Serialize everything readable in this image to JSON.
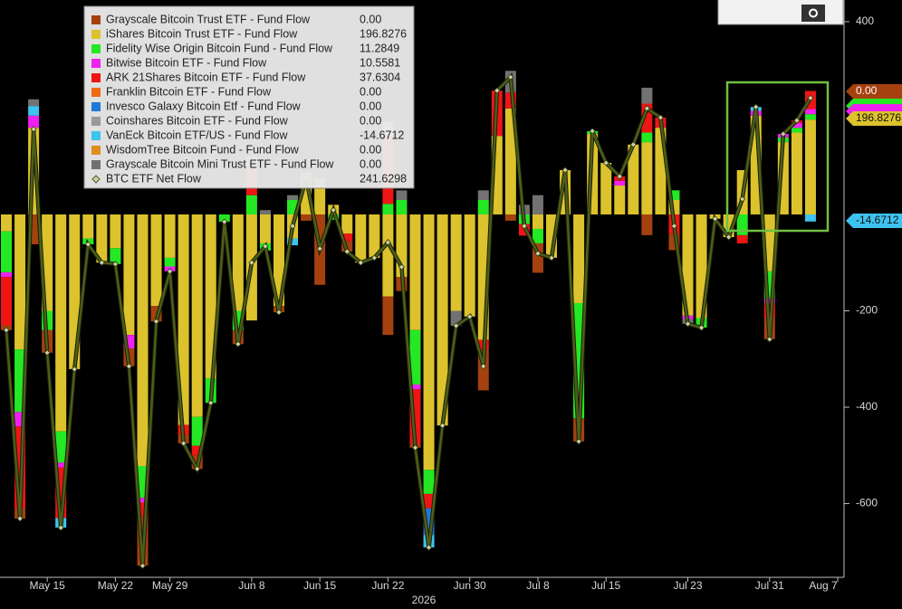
{
  "chart_data": {
    "type": "stacked-bar-line",
    "x_label": "2026",
    "categories": [
      null,
      null,
      null,
      "May 15",
      null,
      null,
      null,
      null,
      "May 22",
      null,
      null,
      null,
      "May 29",
      null,
      null,
      null,
      null,
      null,
      "Jun 8",
      null,
      null,
      null,
      null,
      "Jun 15",
      null,
      null,
      null,
      null,
      "Jun 22",
      null,
      null,
      null,
      null,
      null,
      "Jun 30",
      null,
      null,
      null,
      null,
      "Jul 8",
      null,
      null,
      null,
      null,
      "Jul 15",
      null,
      null,
      null,
      null,
      null,
      "Jul 23",
      null,
      null,
      null,
      null,
      null,
      "Jul 31",
      null,
      null,
      null,
      null,
      "Aug 7"
    ],
    "ylim": [
      -753,
      445
    ],
    "yticks": [
      -600,
      -400,
      -200,
      400
    ],
    "series": [
      {
        "name": "Grayscale Bitcoin Trust ETF - Fund Flow",
        "legend_value": "0.00",
        "color": "#a4410f",
        "values": [
          -10,
          -21,
          -62,
          -47,
          0,
          0,
          0,
          0,
          0,
          -37,
          -103,
          -32,
          0,
          -18,
          -28,
          0,
          0,
          -29,
          0,
          0,
          -13,
          0,
          -13,
          -146,
          0,
          -22,
          0,
          0,
          -80,
          -29,
          -8,
          0,
          0,
          0,
          0,
          -85,
          0,
          -13,
          0,
          -61,
          0,
          0,
          -48,
          0,
          0,
          0,
          0,
          -43,
          0,
          -34,
          0,
          0,
          0,
          0,
          0,
          0,
          -45,
          0,
          0,
          0,
          null,
          null
        ]
      },
      {
        "name": "iShares Bitcoin Trust ETF - Fund Flow",
        "legend_value": "196.8276",
        "color": "#dcc22c",
        "values": [
          -35,
          -280,
          180,
          -200,
          -450,
          -321,
          -50,
          -100,
          -70,
          -250,
          -522,
          -190,
          -90,
          -437,
          -420,
          -340,
          0,
          -200,
          -220,
          -60,
          -190,
          -50,
          60,
          60,
          20,
          -40,
          -100,
          -90,
          -170,
          -130,
          -240,
          -530,
          -438,
          -200,
          -212,
          -260,
          163,
          220,
          0,
          -30,
          -90,
          92,
          -184,
          167,
          107,
          60,
          145,
          150,
          180,
          30,
          -210,
          -215,
          -9,
          -47,
          92,
          205,
          -118,
          150,
          170,
          196.8276,
          null,
          null
        ]
      },
      {
        "name": "Fidelity Wise Origin Bitcoin Fund - Fund Flow",
        "legend_value": "11.2849",
        "color": "#24e824",
        "values": [
          -85,
          -130,
          0,
          -40,
          -65,
          0,
          -12,
          0,
          -33,
          0,
          -66,
          0,
          -18,
          0,
          -60,
          -51,
          -15,
          -40,
          40,
          -15,
          0,
          30,
          15,
          0,
          -11,
          0,
          0,
          0,
          22,
          30,
          -113,
          -50,
          0,
          0,
          0,
          30,
          0,
          0,
          -20,
          -30,
          0,
          0,
          -239,
          6,
          0,
          0,
          0,
          20,
          0,
          20,
          0,
          -20,
          0,
          0,
          -43,
          0,
          -56,
          10,
          10,
          11.2849,
          null,
          null
        ]
      },
      {
        "name": "Bitwise Bitcoin ETF - Fund Flow",
        "legend_value": "10.5581",
        "color": "#f020f0",
        "values": [
          -10,
          -30,
          25,
          0,
          -10,
          0,
          0,
          0,
          0,
          -28,
          -10,
          0,
          -10,
          0,
          0,
          0,
          0,
          0,
          0,
          0,
          0,
          0,
          0,
          0,
          0,
          0,
          0,
          0,
          0,
          0,
          -10,
          0,
          0,
          0,
          0,
          0,
          0,
          0,
          0,
          0,
          0,
          0,
          0,
          0,
          0,
          10,
          0,
          0,
          0,
          0,
          -7,
          0,
          0,
          0,
          0,
          10,
          -10,
          7,
          10,
          10.5581,
          null,
          null
        ]
      },
      {
        "name": "ARK 21Shares Bitcoin ETF - Fund Flow",
        "legend_value": "37.6304",
        "color": "#ee1515",
        "values": [
          -100,
          -170,
          0,
          0,
          -105,
          0,
          0,
          0,
          0,
          0,
          -28,
          0,
          0,
          -20,
          -20,
          0,
          0,
          0,
          60,
          0,
          0,
          0,
          0,
          0,
          0,
          -15,
          0,
          0,
          140,
          0,
          -113,
          -30,
          0,
          0,
          0,
          -20,
          94,
          33,
          -24,
          0,
          0,
          0,
          0,
          0,
          0,
          9,
          0,
          60,
          21,
          -40,
          0,
          0,
          0,
          0,
          -17,
          0,
          -30,
          0,
          5,
          37.6304,
          null,
          null
        ]
      },
      {
        "name": "Franklin Bitcoin ETF - Fund Flow",
        "legend_value": "0.00",
        "color": "#ee6a14",
        "values": [
          0,
          0,
          0,
          0,
          0,
          0,
          0,
          0,
          0,
          0,
          0,
          0,
          0,
          0,
          0,
          0,
          0,
          0,
          0,
          0,
          0,
          0,
          0,
          0,
          0,
          0,
          0,
          0,
          0,
          0,
          0,
          0,
          0,
          0,
          0,
          0,
          0,
          0,
          0,
          0,
          0,
          0,
          0,
          0,
          0,
          0,
          0,
          0,
          0,
          0,
          0,
          0,
          0,
          0,
          0,
          0,
          0,
          0,
          0,
          0,
          null,
          null
        ]
      },
      {
        "name": "Invesco Galaxy Bitcoin Etf - Fund Flow",
        "legend_value": "0.00",
        "color": "#1f78d8",
        "values": [
          0,
          0,
          0,
          0,
          0,
          0,
          0,
          0,
          0,
          0,
          0,
          0,
          0,
          0,
          0,
          0,
          0,
          0,
          0,
          0,
          0,
          0,
          0,
          0,
          0,
          0,
          0,
          0,
          0,
          0,
          0,
          -55,
          0,
          0,
          0,
          0,
          0,
          0,
          0,
          0,
          0,
          0,
          0,
          0,
          0,
          0,
          0,
          0,
          0,
          0,
          0,
          0,
          0,
          0,
          0,
          0,
          0,
          0,
          0,
          0,
          null,
          null
        ]
      },
      {
        "name": "Coinshares Bitcoin ETF - Fund Flow",
        "legend_value": "0.00",
        "color": "#9a9a9a",
        "values": [
          0,
          0,
          0,
          0,
          0,
          0,
          0,
          0,
          0,
          0,
          0,
          0,
          0,
          0,
          0,
          0,
          0,
          0,
          0,
          0,
          0,
          0,
          0,
          0,
          0,
          0,
          0,
          0,
          30,
          0,
          0,
          0,
          0,
          0,
          0,
          0,
          0,
          0,
          0,
          0,
          0,
          0,
          0,
          0,
          0,
          0,
          0,
          0,
          0,
          0,
          0,
          0,
          0,
          0,
          0,
          0,
          0,
          0,
          0,
          0,
          null,
          null
        ]
      },
      {
        "name": "VanEck Bitcoin ETF/US - Fund Flow",
        "legend_value": "-14.6712",
        "color": "#3ec2f0",
        "values": [
          0,
          0,
          20,
          0,
          -20,
          0,
          0,
          0,
          0,
          0,
          0,
          0,
          0,
          0,
          0,
          0,
          0,
          0,
          0,
          0,
          0,
          -14,
          0,
          0,
          0,
          0,
          0,
          0,
          0,
          0,
          0,
          -26,
          0,
          0,
          0,
          0,
          0,
          0,
          0,
          0,
          0,
          0,
          0,
          0,
          0,
          0,
          0,
          0,
          0,
          0,
          0,
          0,
          0,
          0,
          0,
          8,
          0,
          0,
          0,
          -14.6712,
          null,
          null
        ]
      },
      {
        "name": "WisdomTree Bitcoin Fund - Fund Flow",
        "legend_value": "0.00",
        "color": "#e08c1c",
        "values": [
          0,
          0,
          0,
          0,
          0,
          0,
          0,
          0,
          0,
          0,
          0,
          0,
          0,
          0,
          0,
          0,
          0,
          0,
          0,
          0,
          0,
          0,
          0,
          0,
          0,
          0,
          0,
          0,
          0,
          0,
          0,
          0,
          0,
          0,
          0,
          0,
          0,
          0,
          0,
          0,
          0,
          0,
          0,
          0,
          0,
          0,
          0,
          0,
          0,
          0,
          0,
          0,
          0,
          0,
          0,
          0,
          0,
          0,
          0,
          0,
          null,
          null
        ]
      },
      {
        "name": "Grayscale Bitcoin Mini Trust ETF - Fund Flow",
        "legend_value": "0.00",
        "color": "#727272",
        "values": [
          0,
          0,
          14,
          0,
          0,
          0,
          0,
          0,
          0,
          0,
          0,
          0,
          0,
          0,
          0,
          0,
          0,
          0,
          20,
          9,
          0,
          10,
          13,
          15,
          0,
          0,
          0,
          0,
          0,
          20,
          0,
          0,
          0,
          -31,
          0,
          20,
          0,
          45,
          20,
          40,
          0,
          0,
          0,
          0,
          0,
          0,
          0,
          33,
          0,
          0,
          -10,
          0,
          0,
          0,
          0,
          0,
          0,
          0,
          0,
          0,
          null,
          null
        ]
      }
    ],
    "line": {
      "name": "BTC ETF Net Flow",
      "legend_value": "241.6298",
      "color": "#4d5e1c",
      "values": [
        -240,
        -631,
        177,
        -287,
        -650,
        -321,
        -62,
        -100,
        -103,
        -315,
        -729,
        -222,
        -118,
        -475,
        -528,
        -391,
        -15,
        -269,
        -100,
        -66,
        -203,
        -24,
        75,
        -71,
        9,
        -77,
        -100,
        -90,
        -58,
        -109,
        -484,
        -691,
        -438,
        -231,
        -212,
        -315,
        257,
        285,
        -24,
        -81,
        -90,
        92,
        -471,
        173,
        107,
        79,
        145,
        220,
        201,
        -24,
        -227,
        -235,
        -9,
        -47,
        32,
        223,
        -259,
        167,
        195,
        241.6298,
        null,
        null
      ]
    }
  }
}
